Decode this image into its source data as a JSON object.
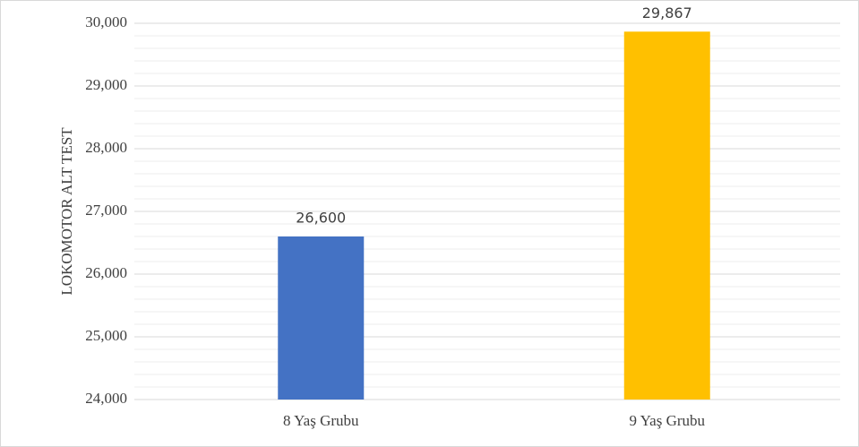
{
  "chart_data": {
    "type": "bar",
    "y_label": "LOKOMOTOR ALT TEST",
    "categories": [
      "8 Yaş Grubu",
      "9 Yaş Grubu"
    ],
    "values": [
      26.6,
      29.867
    ],
    "value_labels": [
      "26,600",
      "29,867"
    ],
    "colors": [
      "#4472c4",
      "#ffc000"
    ],
    "ylim": [
      24,
      30
    ],
    "yticks": [
      {
        "value": 24,
        "label": "24,000"
      },
      {
        "value": 25,
        "label": "25,000"
      },
      {
        "value": 26,
        "label": "26,000"
      },
      {
        "value": 27,
        "label": "27,000"
      },
      {
        "value": 28,
        "label": "28,000"
      },
      {
        "value": 29,
        "label": "29,000"
      },
      {
        "value": 30,
        "label": "30,000"
      }
    ],
    "minor_yticks": [
      24.2,
      24.4,
      24.6,
      24.8,
      25.2,
      25.4,
      25.6,
      25.8,
      26.2,
      26.4,
      26.6,
      26.8,
      27.2,
      27.4,
      27.6,
      27.8,
      28.2,
      28.4,
      28.6,
      28.8,
      29.2,
      29.4,
      29.6,
      29.8
    ],
    "grid": true
  }
}
